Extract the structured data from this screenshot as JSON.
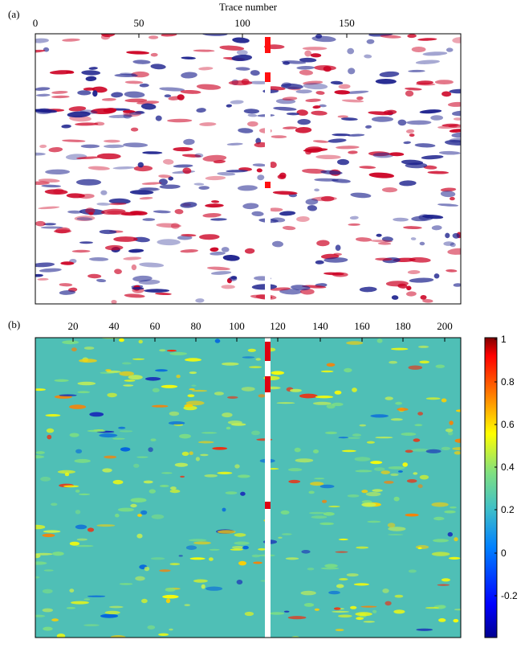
{
  "panels": {
    "a": {
      "label": "(a)",
      "x_axis_title": "Trace number",
      "x_ticks": [
        "0",
        "50",
        "100",
        "150"
      ]
    },
    "b": {
      "label": "(b)",
      "x_ticks": [
        "20",
        "40",
        "60",
        "80",
        "100",
        "120",
        "140",
        "160",
        "180",
        "200"
      ],
      "colorbar_ticks": [
        "1",
        "0.8",
        "0.6",
        "0.4",
        "0.2",
        "0",
        "-0.2"
      ]
    }
  },
  "chart_data": [
    {
      "type": "heatmap",
      "title": "",
      "xlabel": "Trace number",
      "ylabel": "",
      "xlim": [
        0,
        205
      ],
      "x_tick_values": [
        0,
        50,
        100,
        150
      ],
      "colormap": "seismic (blue-white-red)",
      "colors": {
        "positive": "#cc0022",
        "negative": "#1a1f8c",
        "zero": "#ffffff"
      },
      "missing_trace_column": 113,
      "grid": false
    },
    {
      "type": "heatmap",
      "title": "",
      "xlabel": "",
      "ylabel": "",
      "xlim": [
        0,
        206
      ],
      "x_tick_values": [
        20,
        40,
        60,
        80,
        100,
        120,
        140,
        160,
        180,
        200
      ],
      "colormap": "jet",
      "color_range": [
        -0.4,
        1
      ],
      "colorbar_tick_values": [
        1,
        0.8,
        0.6,
        0.4,
        0.2,
        0,
        -0.2
      ],
      "colors": {
        "low": "#00008f",
        "mid": "#55c6b8",
        "high": "#800000"
      },
      "missing_trace_column": 113,
      "grid": false,
      "legend": "right"
    }
  ]
}
